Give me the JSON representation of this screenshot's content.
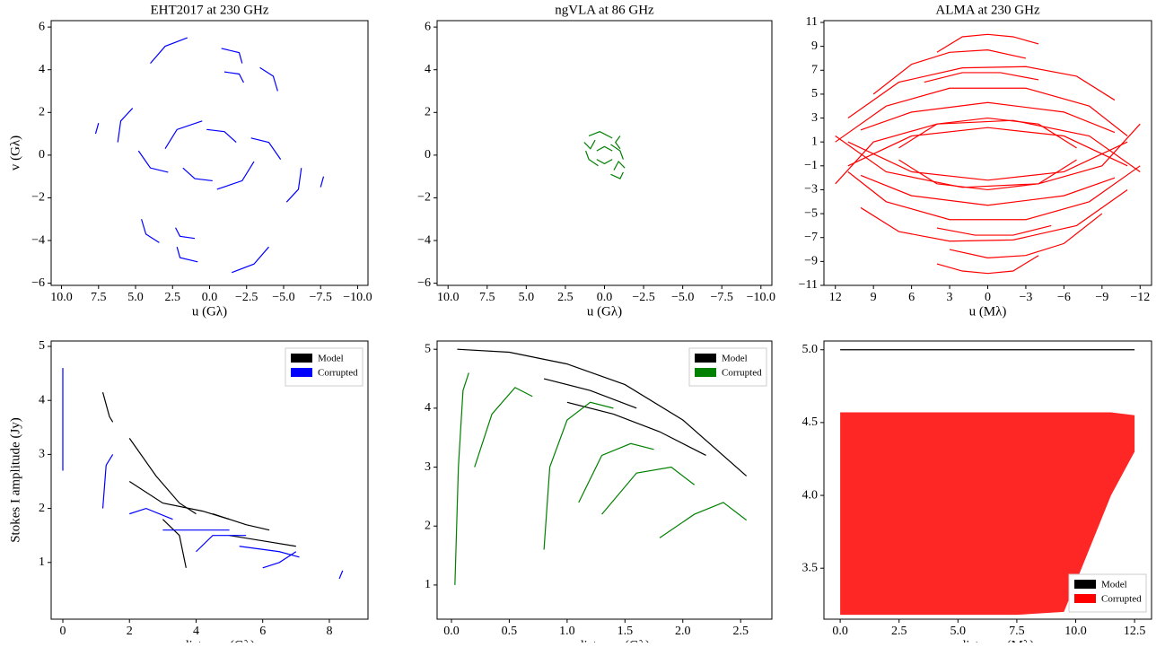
{
  "chart_data": [
    {
      "type": "line",
      "title": "EHT2017 at 230 GHz",
      "xlabel": "u (Gλ)",
      "ylabel": "v (Gλ)",
      "xlim": [
        10.7,
        -10.7
      ],
      "ylim": [
        -6.1,
        6.3
      ],
      "xticks": [
        {
          "value": 10,
          "label": "10.0"
        },
        7.5,
        {
          "value": 5,
          "label": "5.0"
        },
        2.5,
        {
          "value": 0,
          "label": "0.0"
        },
        {
          "value": -2.5,
          "label": "−2.5"
        },
        {
          "value": -5,
          "label": "−5.0"
        },
        {
          "value": -7.5,
          "label": "−7.5"
        },
        {
          "value": -10,
          "label": "−10.0"
        }
      ],
      "yticks": [
        {
          "value": -6,
          "label": "−6"
        },
        {
          "value": -4,
          "label": "−4"
        },
        {
          "value": -2,
          "label": "−2"
        },
        0,
        2,
        4,
        6
      ],
      "series": [
        {
          "color": "#0000ff",
          "x": [
            4,
            3,
            1.5,
            null,
            -0.8,
            -2,
            -2.2,
            null,
            -1,
            -2,
            -2.3,
            null,
            -3.4,
            -4.3,
            -4.6,
            null,
            5.2,
            6,
            6.2,
            null,
            3,
            2.2,
            0.5,
            null,
            0.2,
            -1,
            -1.8,
            null,
            -2.8,
            -4,
            -4.8,
            null,
            7.5,
            7.7,
            null,
            -4,
            -4,
            -4,
            null,
            -4,
            -3,
            -1.5,
            null,
            0.8,
            2,
            2.2,
            null,
            1,
            2,
            2.3,
            null,
            3.4,
            4.3,
            4.6,
            null,
            -5.2,
            -6,
            -6.2,
            null,
            -3,
            -2.2,
            -0.5,
            null,
            -0.2,
            1,
            1.8,
            null,
            2.8,
            4,
            4.8,
            null,
            -7.5,
            -7.7,
            null,
            4,
            4,
            4
          ],
          "values": [
            4.3,
            5.1,
            5.5,
            null,
            5,
            4.8,
            4.3,
            null,
            3.9,
            3.8,
            3.4,
            null,
            4.1,
            3.7,
            3,
            null,
            2.2,
            1.6,
            0.6,
            null,
            0.3,
            1.2,
            1.6,
            null,
            1.2,
            1.1,
            0.6,
            null,
            0.8,
            0.6,
            -0.2,
            null,
            1.5,
            1,
            null,
            1.4,
            1.4,
            1.4,
            null,
            -4.3,
            -5.1,
            -5.5,
            null,
            -5,
            -4.8,
            -4.3,
            null,
            -3.9,
            -3.8,
            -3.4,
            null,
            -4.1,
            -3.7,
            -3,
            null,
            -2.2,
            -1.6,
            -0.6,
            null,
            -0.3,
            -1.2,
            -1.6,
            null,
            -1.2,
            -1.1,
            -0.6,
            null,
            -0.8,
            -0.6,
            0.2,
            null,
            -1.5,
            -1,
            null,
            -1.4,
            -1.4,
            -1.4
          ]
        }
      ]
    },
    {
      "type": "line",
      "title": "ngVLA at 86 GHz",
      "xlabel": "u (Gλ)",
      "xlim": [
        10.7,
        -10.7
      ],
      "ylim": [
        -6.1,
        6.3
      ],
      "xticks": [
        {
          "value": 10,
          "label": "10.0"
        },
        7.5,
        {
          "value": 5,
          "label": "5.0"
        },
        2.5,
        {
          "value": 0,
          "label": "0.0"
        },
        {
          "value": -2.5,
          "label": "−2.5"
        },
        {
          "value": -5,
          "label": "−5.0"
        },
        {
          "value": -7.5,
          "label": "−7.5"
        },
        {
          "value": -10,
          "label": "−10.0"
        }
      ],
      "yticks": [
        {
          "value": -6,
          "label": "−6"
        },
        {
          "value": -4,
          "label": "−4"
        },
        {
          "value": -2,
          "label": "−2"
        },
        0,
        2,
        4,
        6
      ],
      "series": [
        {
          "color": "#008000",
          "x": [
            1,
            0.3,
            -0.5,
            null,
            -0.4,
            -1,
            -1.2,
            null,
            0.5,
            0,
            -0.5,
            null,
            1.3,
            0.9,
            0.6,
            null,
            -1,
            -0.7,
            -1,
            null,
            -0.4,
            -1,
            -1.2,
            null,
            0.4,
            1,
            1.2,
            null,
            -0.5,
            0,
            0.5,
            null,
            -1.3,
            -0.9,
            -0.6
          ],
          "values": [
            0.9,
            1.1,
            0.8,
            null,
            0.5,
            0.2,
            -0.2,
            null,
            0.2,
            0.4,
            0.2,
            null,
            0.6,
            0.3,
            0.7,
            null,
            0.9,
            0.6,
            0.3,
            null,
            -0.9,
            -1.1,
            -0.8,
            null,
            -0.5,
            -0.2,
            0.2,
            null,
            -0.2,
            -0.4,
            -0.2,
            null,
            -0.6,
            -0.3,
            -0.7
          ]
        }
      ]
    },
    {
      "type": "line",
      "title": "ALMA at 230 GHz",
      "xlabel": "u (Mλ)",
      "xlim": [
        12.9,
        -12.9
      ],
      "ylim": [
        -11,
        11.15
      ],
      "xticks": [
        12,
        9,
        6,
        3,
        0,
        {
          "value": -3,
          "label": "−3"
        },
        {
          "value": -6,
          "label": "−6"
        },
        {
          "value": -9,
          "label": "−9"
        },
        {
          "value": -12,
          "label": "−12"
        }
      ],
      "yticks": [
        {
          "value": -11,
          "label": "−11"
        },
        {
          "value": -9,
          "label": "−9"
        },
        {
          "value": -7,
          "label": "−7"
        },
        {
          "value": -5,
          "label": "−5"
        },
        {
          "value": -3,
          "label": "−3"
        },
        {
          "value": -1,
          "label": "−1"
        },
        1,
        3,
        5,
        7,
        9,
        11
      ],
      "series": [
        {
          "color": "#ff0000",
          "x": [
            4,
            2,
            0,
            -2,
            -4,
            null,
            9,
            6,
            3,
            0,
            -3,
            null,
            11,
            7,
            2,
            -3,
            -7,
            -10,
            null,
            12,
            8,
            3,
            -3,
            -8,
            -11,
            null,
            10,
            6,
            0,
            -6,
            -10,
            null,
            7,
            4,
            0,
            -4,
            -7,
            null,
            11,
            6,
            0,
            -6,
            -11,
            null,
            5,
            2,
            -1,
            -4,
            null,
            12,
            9,
            4,
            -2,
            -8,
            -12,
            null,
            -4,
            -2,
            0,
            2,
            4,
            null,
            -9,
            -6,
            -3,
            0,
            3,
            null,
            -11,
            -7,
            -2,
            3,
            7,
            10,
            null,
            -12,
            -8,
            -3,
            3,
            8,
            11,
            null,
            -10,
            -6,
            0,
            6,
            10,
            null,
            -7,
            -4,
            0,
            4,
            7,
            null,
            -11,
            -6,
            0,
            6,
            11,
            null,
            -5,
            -2,
            1,
            4,
            null,
            -12,
            -9,
            -4,
            2,
            8,
            12
          ],
          "values": [
            8.5,
            9.8,
            10,
            9.8,
            9.2,
            null,
            5,
            7.5,
            8.5,
            8.7,
            8,
            null,
            3,
            6,
            7.2,
            7.3,
            6.5,
            4.5,
            null,
            1,
            4,
            5.5,
            5.5,
            4,
            1.5,
            null,
            2,
            3.5,
            4.3,
            3.5,
            1.8,
            null,
            0.5,
            2.5,
            3,
            2.5,
            0.5,
            null,
            -1,
            1.5,
            2.2,
            1.5,
            -1,
            null,
            6,
            6.8,
            6.8,
            6.2,
            null,
            -2.5,
            1,
            2.5,
            2.8,
            1.5,
            -1.5,
            null,
            -8.5,
            -9.8,
            -10,
            -9.8,
            -9.2,
            null,
            -5,
            -7.5,
            -8.5,
            -8.7,
            -8,
            null,
            -3,
            -6,
            -7.2,
            -7.3,
            -6.5,
            -4.5,
            null,
            -1,
            -4,
            -5.5,
            -5.5,
            -4,
            -1.5,
            null,
            -2,
            -3.5,
            -4.3,
            -3.5,
            -1.8,
            null,
            -0.5,
            -2.5,
            -3,
            -2.5,
            -0.5,
            null,
            1,
            -1.5,
            -2.2,
            -1.5,
            1,
            null,
            -6,
            -6.8,
            -6.8,
            -6.2,
            null,
            2.5,
            -1,
            -2.5,
            -2.8,
            -1.5,
            1.5
          ]
        }
      ]
    },
    {
      "type": "line",
      "xlabel": "uv-distance (Gλ)",
      "ylabel": "Stokes I amplitude (Jy)",
      "legend": "upper right",
      "xlim": [
        -0.35,
        9.16
      ],
      "ylim": [
        -0.05,
        5.1
      ],
      "xticks": [
        0,
        2,
        4,
        6,
        8
      ],
      "yticks": [
        1,
        2,
        3,
        4,
        5
      ],
      "series": [
        {
          "name": "Model",
          "color": "#000000",
          "x": [
            1.2,
            1.4,
            1.5,
            null,
            2,
            2.8,
            3.5,
            4,
            null,
            2,
            3,
            4.2,
            5,
            null,
            4.5,
            5.5,
            6.2,
            null,
            5,
            6,
            7,
            null,
            3,
            3.5,
            3.7
          ],
          "values": [
            4.15,
            3.7,
            3.6,
            null,
            3.3,
            2.6,
            2.1,
            1.9,
            null,
            2.5,
            2.1,
            1.95,
            1.8,
            null,
            1.9,
            1.7,
            1.6,
            null,
            1.5,
            1.4,
            1.3,
            null,
            1.8,
            1.5,
            0.9
          ]
        },
        {
          "name": "Corrupted",
          "color": "#0000ff",
          "x": [
            0,
            0,
            0,
            null,
            1.2,
            1.3,
            1.5,
            null,
            2,
            2.5,
            3.3,
            null,
            3,
            4.2,
            5,
            null,
            4,
            4.5,
            5.5,
            null,
            5.3,
            6.5,
            7.1,
            null,
            6,
            6.5,
            7,
            null,
            8.3,
            8.4
          ],
          "values": [
            4.6,
            3.5,
            2.7,
            null,
            2,
            2.8,
            3,
            null,
            1.9,
            2,
            1.8,
            null,
            1.6,
            1.6,
            1.6,
            null,
            1.2,
            1.5,
            1.5,
            null,
            1.3,
            1.2,
            1.1,
            null,
            0.9,
            1,
            1.2,
            null,
            0.7,
            0.85
          ]
        }
      ]
    },
    {
      "type": "line",
      "xlabel": "uv-distance (Gλ)",
      "legend": "upper right",
      "xlim": [
        -0.124,
        2.77
      ],
      "ylim": [
        0.42,
        5.14
      ],
      "xticks": [
        {
          "value": 0,
          "label": "0.0"
        },
        0.5,
        {
          "value": 1,
          "label": "1.0"
        },
        1.5,
        {
          "value": 2,
          "label": "2.0"
        },
        2.5
      ],
      "yticks": [
        1,
        2,
        3,
        4,
        5
      ],
      "series": [
        {
          "name": "Model",
          "color": "#000000",
          "x": [
            0.05,
            0.5,
            1,
            1.5,
            2,
            2.55,
            null,
            0.8,
            1.2,
            1.6,
            null,
            1,
            1.4,
            1.8,
            2.2
          ],
          "values": [
            5,
            4.95,
            4.75,
            4.4,
            3.8,
            2.85,
            null,
            4.5,
            4.3,
            4,
            null,
            4.1,
            3.9,
            3.6,
            3.2
          ]
        },
        {
          "name": "Corrupted",
          "color": "#008000",
          "x": [
            0.03,
            0.06,
            0.1,
            0.15,
            null,
            0.2,
            0.35,
            0.55,
            0.7,
            null,
            0.8,
            0.85,
            1,
            1.2,
            1.4,
            null,
            1.1,
            1.3,
            1.55,
            1.75,
            null,
            1.3,
            1.6,
            1.9,
            2.1,
            null,
            1.8,
            2.1,
            2.35,
            2.55
          ],
          "values": [
            1,
            3,
            4.3,
            4.6,
            null,
            3,
            3.9,
            4.35,
            4.2,
            null,
            1.6,
            3,
            3.8,
            4.1,
            4,
            null,
            2.4,
            3.2,
            3.4,
            3.3,
            null,
            2.2,
            2.9,
            3,
            2.7,
            null,
            1.8,
            2.2,
            2.4,
            2.1
          ]
        }
      ]
    },
    {
      "type": "line",
      "xlabel": "uv-distance (Mλ)",
      "legend": "lower right",
      "xlim": [
        -0.69,
        13.22
      ],
      "ylim": [
        3.15,
        5.06
      ],
      "xticks": [
        {
          "value": 0,
          "label": "0.0"
        },
        2.5,
        {
          "value": 5,
          "label": "5.0"
        },
        7.5,
        {
          "value": 10,
          "label": "10.0"
        },
        12.5
      ],
      "yticks": [
        3.5,
        {
          "value": 4,
          "label": "4.0"
        },
        4.5,
        {
          "value": 5,
          "label": "5.0"
        }
      ],
      "series": [
        {
          "name": "Model",
          "color": "#000000",
          "x": [
            0,
            12.5
          ],
          "values": [
            5,
            5
          ]
        },
        {
          "name": "Corrupted",
          "color": "#ff0000",
          "x": [
            0,
            2.5,
            5,
            7.5,
            9.5,
            10.5,
            11.5,
            12.5
          ],
          "values": [
            4.57,
            4.57,
            4.57,
            4.57,
            4.57,
            4.57,
            4.57,
            4.55
          ],
          "lower": [
            3.18,
            3.18,
            3.18,
            3.18,
            3.2,
            3.6,
            4,
            4.3
          ]
        }
      ]
    }
  ]
}
